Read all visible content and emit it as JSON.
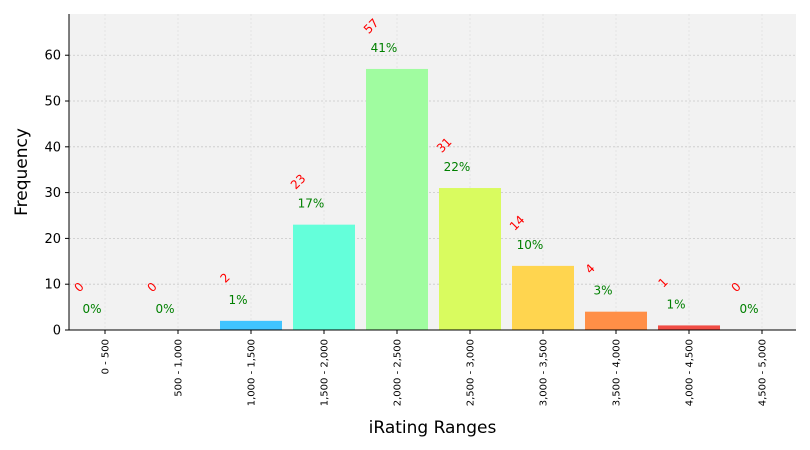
{
  "chart_data": {
    "type": "bar",
    "categories": [
      "0 - 500",
      "500 - 1,000",
      "1,000 - 1,500",
      "1,500 - 2,000",
      "2,000 - 2,500",
      "2,500 - 3,000",
      "3,000 - 3,500",
      "3,500 - 4,000",
      "4,000 - 4,500",
      "4,500 - 5,000"
    ],
    "values": [
      0,
      0,
      2,
      23,
      57,
      31,
      14,
      4,
      1,
      0
    ],
    "percent_labels": [
      "0%",
      "0%",
      "1%",
      "17%",
      "41%",
      "22%",
      "10%",
      "3%",
      "1%",
      "0%"
    ],
    "count_labels": [
      "0",
      "0",
      "2",
      "23",
      "57",
      "31",
      "14",
      "4",
      "1",
      "0"
    ],
    "bar_colors": [
      "#3d5afe",
      "#40c4ff",
      "#40c4ff",
      "#64ffda",
      "#a0fca0",
      "#d9fb5f",
      "#ffd54f",
      "#ff8f47",
      "#f04d45",
      "#b71c1c"
    ],
    "xlabel": "iRating Ranges",
    "ylabel": "Frequency",
    "yticks": [
      0,
      10,
      20,
      30,
      40,
      50,
      60
    ],
    "ylim": [
      0,
      69
    ],
    "grid": true,
    "background_color": "#f2f2f2",
    "count_label_color": "#ff0000",
    "percent_label_color": "#008000"
  }
}
